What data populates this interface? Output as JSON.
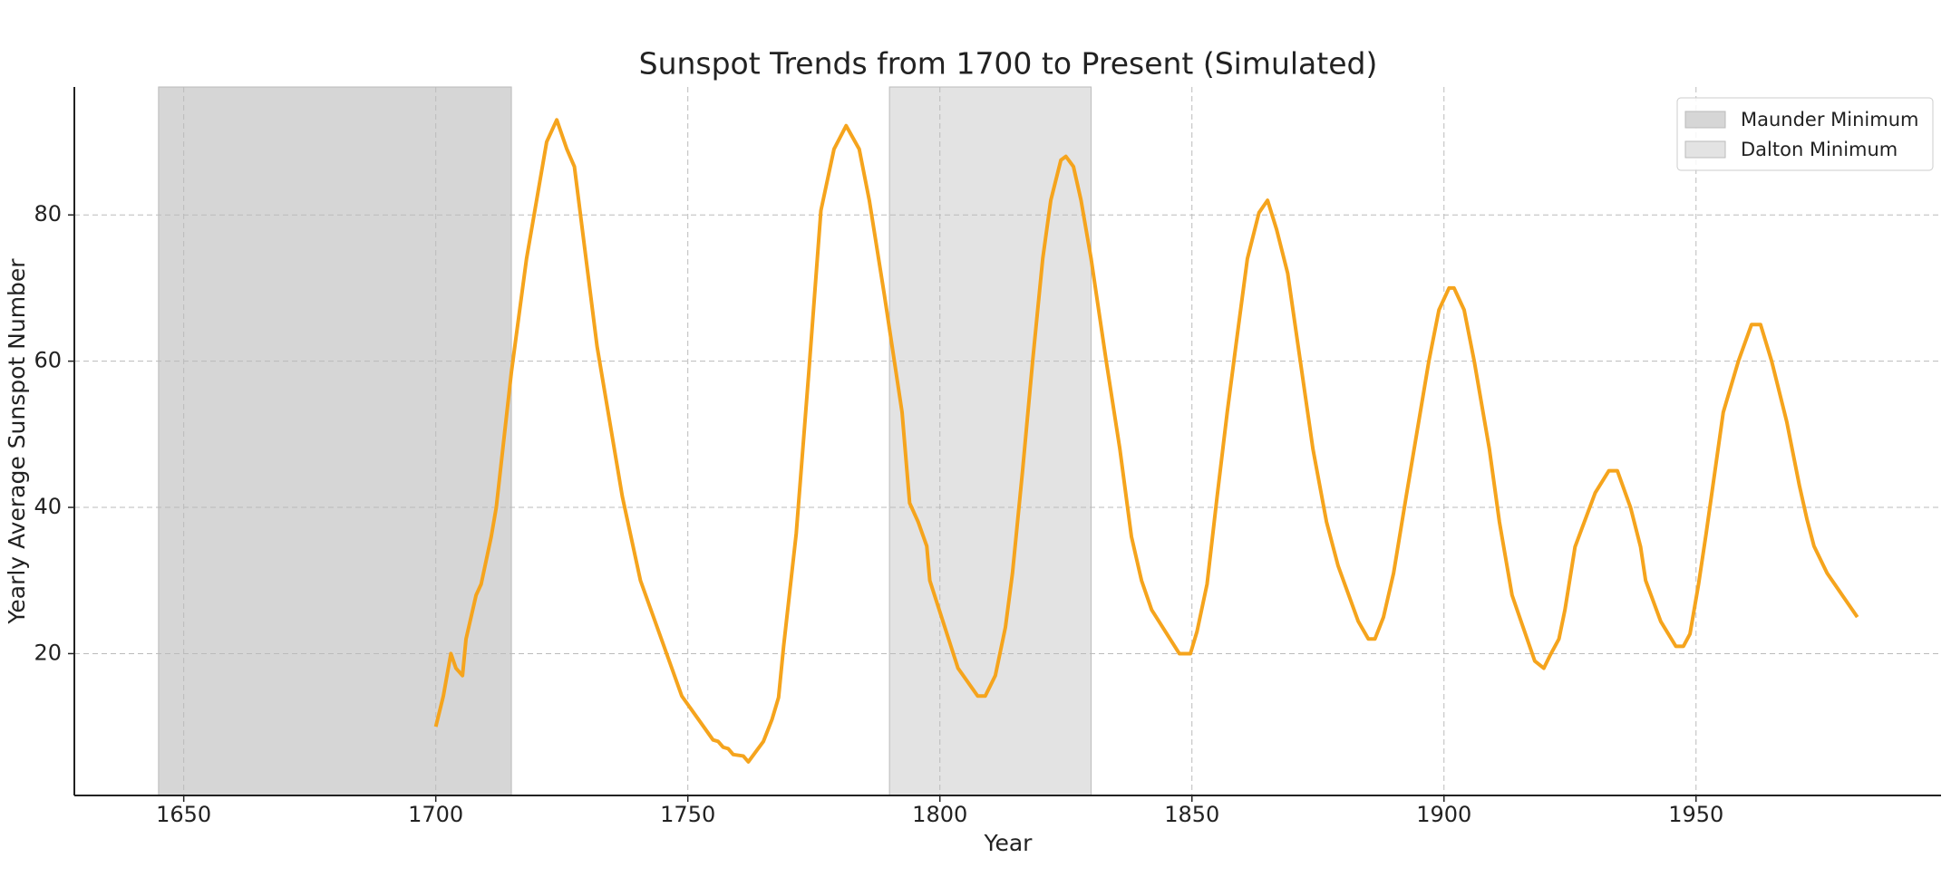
{
  "chart_data": {
    "type": "line",
    "title": "Sunspot Trends from 1700 to Present (Simulated)",
    "xlabel": "Year",
    "ylabel": "Yearly Average Sunspot Number",
    "x": [
      1700,
      1701.5,
      1703,
      1704,
      1705.3,
      1706,
      1708,
      1709,
      1711,
      1712,
      1715,
      1718,
      1722,
      1724,
      1726,
      1727.5,
      1732,
      1737,
      1740.6,
      1748.8,
      1755,
      1756,
      1757,
      1758,
      1759,
      1761,
      1762,
      1765,
      1766.7,
      1768,
      1769,
      1771.5,
      1774,
      1776.4,
      1779,
      1781.4,
      1784,
      1786,
      1789,
      1792.5,
      1794,
      1795.7,
      1797.4,
      1798,
      1803.6,
      1807.5,
      1809,
      1811,
      1813,
      1814.4,
      1816.4,
      1818.4,
      1820.4,
      1822,
      1824,
      1825,
      1826.5,
      1828,
      1830,
      1833,
      1835.7,
      1838,
      1840,
      1842,
      1847.5,
      1849.7,
      1851,
      1853,
      1855,
      1857,
      1859,
      1861,
      1863.3,
      1865,
      1866.8,
      1869,
      1871.5,
      1874,
      1876.7,
      1879,
      1883,
      1885,
      1886.3,
      1888,
      1890,
      1892.5,
      1897,
      1899,
      1901,
      1902,
      1904,
      1906,
      1909,
      1911,
      1913.5,
      1916,
      1918,
      1919.8,
      1921,
      1922.8,
      1924,
      1926,
      1930,
      1932.7,
      1934.4,
      1937,
      1939,
      1940,
      1943,
      1946,
      1947.5,
      1948.8,
      1950.5,
      1952,
      1955.4,
      1958.4,
      1961,
      1962.8,
      1965,
      1968,
      1970.5,
      1972,
      1973.4,
      1976,
      1982
    ],
    "series": [
      {
        "name": "Yearly Average Sunspot Number",
        "color": "#f5a41d",
        "values": [
          10,
          14.2,
          20,
          18,
          17,
          22,
          28,
          29.5,
          36,
          40,
          58.5,
          74,
          90,
          93,
          89,
          86.6,
          62,
          41.5,
          30,
          14.2,
          8.2,
          8,
          7.2,
          7,
          6.2,
          6,
          5.2,
          8,
          11,
          14,
          21,
          36.4,
          58.5,
          80.6,
          89,
          92.2,
          89,
          82,
          69,
          53,
          40.6,
          38,
          34.7,
          30,
          18,
          14.2,
          14.2,
          17,
          23.6,
          31,
          45,
          60,
          74,
          82,
          87.5,
          88,
          86.6,
          82,
          74,
          60,
          48,
          36,
          30,
          26,
          20,
          20,
          23,
          29.5,
          41.5,
          53,
          63.6,
          74,
          80.3,
          82,
          78,
          72,
          60,
          48,
          38,
          32,
          24.4,
          22,
          22,
          25,
          31,
          41.5,
          60,
          67,
          70,
          70,
          67,
          60,
          48,
          38,
          28,
          23,
          19,
          18,
          19.7,
          22,
          26,
          34.6,
          42,
          45,
          45,
          40,
          34.6,
          30,
          24.4,
          21,
          21,
          22.7,
          29.5,
          36.4,
          53,
          60,
          65,
          65,
          60,
          51.7,
          43,
          38.4,
          34.7,
          31,
          25
        ]
      }
    ],
    "spans": [
      {
        "name": "Maunder Minimum",
        "start": 1645,
        "end": 1715,
        "color": "#d6d6d6"
      },
      {
        "name": "Dalton Minimum",
        "start": 1790,
        "end": 1830,
        "color": "#e3e3e3"
      }
    ],
    "xlim": [
      1628.3,
      1998.6
    ],
    "ylim": [
      0.6,
      97.5
    ],
    "xticks": [
      1650,
      1700,
      1750,
      1800,
      1850,
      1900,
      1950
    ],
    "yticks": [
      20,
      40,
      60,
      80
    ],
    "grid": true,
    "legend": "upper right"
  }
}
